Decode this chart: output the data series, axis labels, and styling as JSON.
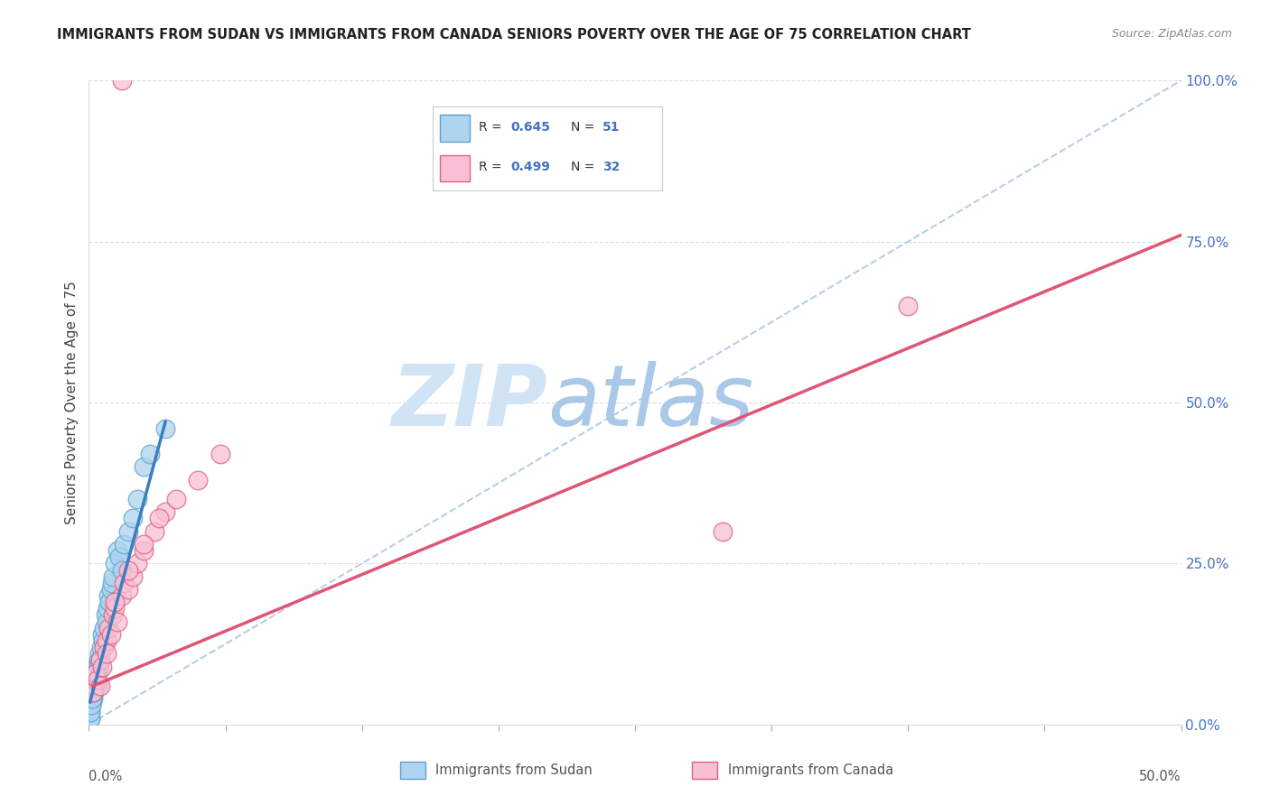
{
  "title": "IMMIGRANTS FROM SUDAN VS IMMIGRANTS FROM CANADA SENIORS POVERTY OVER THE AGE OF 75 CORRELATION CHART",
  "source": "Source: ZipAtlas.com",
  "ylabel": "Seniors Poverty Over the Age of 75",
  "ytick_values": [
    0,
    25,
    50,
    75,
    100
  ],
  "xlim": [
    0,
    50
  ],
  "ylim": [
    0,
    100
  ],
  "legend_R_sudan": "0.645",
  "legend_N_sudan": "51",
  "legend_R_canada": "0.499",
  "legend_N_canada": "32",
  "legend_label_sudan": "Immigrants from Sudan",
  "legend_label_canada": "Immigrants from Canada",
  "color_sudan_fill": "#aed4f0",
  "color_sudan_edge": "#5ba3d0",
  "color_canada_fill": "#f9bfd4",
  "color_canada_edge": "#e06080",
  "color_sudan_line": "#3a7fc1",
  "color_canada_line": "#e05575",
  "color_reference_line": "#b0c8e8",
  "watermark_zip": "ZIP",
  "watermark_atlas": "atlas",
  "watermark_color_zip": "#d0e4f5",
  "watermark_color_atlas": "#aac8e8",
  "sudan_x": [
    0.05,
    0.08,
    0.1,
    0.12,
    0.15,
    0.18,
    0.2,
    0.22,
    0.25,
    0.28,
    0.3,
    0.32,
    0.35,
    0.38,
    0.4,
    0.42,
    0.45,
    0.48,
    0.5,
    0.55,
    0.6,
    0.65,
    0.7,
    0.75,
    0.8,
    0.85,
    0.9,
    0.95,
    1.0,
    1.05,
    1.1,
    1.2,
    1.3,
    1.4,
    1.5,
    1.6,
    1.8,
    2.0,
    2.2,
    2.5,
    0.05,
    0.07,
    0.1,
    0.13,
    0.16,
    0.2,
    0.23,
    0.27,
    0.31,
    2.8,
    3.5
  ],
  "sudan_y": [
    2,
    1,
    3,
    4,
    5,
    6,
    4,
    7,
    5,
    6,
    8,
    7,
    9,
    8,
    6,
    10,
    9,
    11,
    10,
    12,
    14,
    13,
    15,
    17,
    16,
    18,
    20,
    19,
    21,
    22,
    23,
    25,
    27,
    26,
    24,
    28,
    30,
    32,
    35,
    40,
    1,
    2,
    3,
    4,
    5,
    5,
    6,
    7,
    8,
    42,
    46
  ],
  "canada_x": [
    0.2,
    0.3,
    0.4,
    0.5,
    0.6,
    0.7,
    0.8,
    0.9,
    1.0,
    1.1,
    1.2,
    1.3,
    1.5,
    1.6,
    1.8,
    2.0,
    2.2,
    2.5,
    3.0,
    3.5,
    4.0,
    5.0,
    6.0,
    0.5,
    0.8,
    1.2,
    1.8,
    2.5,
    3.2,
    37.5,
    29.0,
    1.5
  ],
  "canada_y": [
    5,
    8,
    7,
    10,
    9,
    12,
    13,
    15,
    14,
    17,
    18,
    16,
    20,
    22,
    21,
    23,
    25,
    27,
    30,
    33,
    35,
    38,
    42,
    6,
    11,
    19,
    24,
    28,
    32,
    65,
    30,
    100
  ],
  "sudan_line_x": [
    0.05,
    3.5
  ],
  "sudan_line_y": [
    3.5,
    47
  ],
  "canada_line_x": [
    0.2,
    50
  ],
  "canada_line_y": [
    6,
    76
  ]
}
